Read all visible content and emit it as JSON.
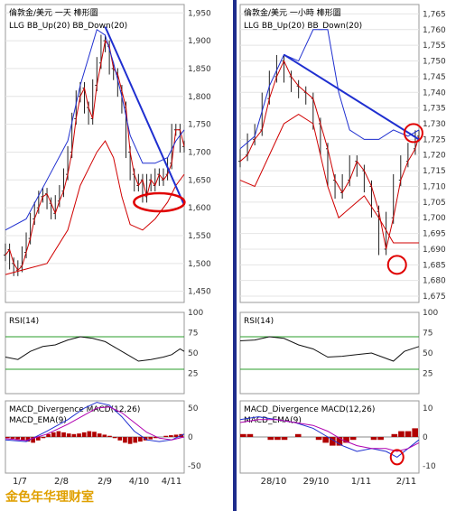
{
  "caption": "金色年华理财室",
  "chart_data": [
    {
      "type": "candlestick",
      "title": "倫敦金/美元 一天 棒形圖",
      "indicator_label": "LLG BB_Up(20) BB_Down(20)",
      "y_ticks": [
        1450,
        1500,
        1550,
        1600,
        1650,
        1700,
        1750,
        1800,
        1850,
        1900,
        1950
      ],
      "ylim": [
        1430,
        1965
      ],
      "x_ticks": [
        "1/7",
        "2/8",
        "2/9",
        "4/10",
        "4/11"
      ],
      "price": [
        [
          0,
          1515
        ],
        [
          2,
          1525
        ],
        [
          4,
          1500
        ],
        [
          6,
          1488
        ],
        [
          8,
          1495
        ],
        [
          10,
          1520
        ],
        [
          12,
          1545
        ],
        [
          14,
          1580
        ],
        [
          16,
          1600
        ],
        [
          18,
          1620
        ],
        [
          20,
          1625
        ],
        [
          22,
          1608
        ],
        [
          24,
          1590
        ],
        [
          26,
          1612
        ],
        [
          28,
          1630
        ],
        [
          30,
          1660
        ],
        [
          32,
          1700
        ],
        [
          34,
          1760
        ],
        [
          36,
          1800
        ],
        [
          38,
          1815
        ],
        [
          40,
          1780
        ],
        [
          42,
          1760
        ],
        [
          44,
          1820
        ],
        [
          46,
          1860
        ],
        [
          48,
          1900
        ],
        [
          50,
          1890
        ],
        [
          52,
          1850
        ],
        [
          54,
          1840
        ],
        [
          56,
          1810
        ],
        [
          58,
          1780
        ],
        [
          60,
          1700
        ],
        [
          62,
          1660
        ],
        [
          64,
          1640
        ],
        [
          66,
          1650
        ],
        [
          68,
          1620
        ],
        [
          70,
          1650
        ],
        [
          72,
          1640
        ],
        [
          74,
          1660
        ],
        [
          76,
          1650
        ],
        [
          78,
          1660
        ],
        [
          80,
          1680
        ],
        [
          82,
          1740
        ],
        [
          84,
          1740
        ],
        [
          86,
          1710
        ]
      ],
      "bb_up": [
        [
          0,
          1560
        ],
        [
          10,
          1580
        ],
        [
          20,
          1650
        ],
        [
          30,
          1720
        ],
        [
          36,
          1820
        ],
        [
          44,
          1920
        ],
        [
          48,
          1910
        ],
        [
          52,
          1860
        ],
        [
          56,
          1800
        ],
        [
          60,
          1730
        ],
        [
          66,
          1680
        ],
        [
          72,
          1680
        ],
        [
          78,
          1690
        ],
        [
          82,
          1720
        ],
        [
          86,
          1740
        ]
      ],
      "bb_down": [
        [
          0,
          1480
        ],
        [
          10,
          1490
        ],
        [
          20,
          1500
        ],
        [
          30,
          1560
        ],
        [
          36,
          1640
        ],
        [
          44,
          1700
        ],
        [
          48,
          1720
        ],
        [
          52,
          1690
        ],
        [
          56,
          1620
        ],
        [
          60,
          1570
        ],
        [
          66,
          1560
        ],
        [
          72,
          1580
        ],
        [
          78,
          1610
        ],
        [
          82,
          1640
        ],
        [
          86,
          1660
        ]
      ],
      "trendline": [
        [
          48,
          1925
        ],
        [
          86,
          1605
        ]
      ],
      "ellipse_center": [
        74,
        1610
      ],
      "rsi": {
        "label": "RSI(14)",
        "ticks": [
          25,
          50,
          75,
          100
        ],
        "bands": [
          30,
          70
        ],
        "values": [
          [
            0,
            45
          ],
          [
            6,
            42
          ],
          [
            12,
            52
          ],
          [
            18,
            58
          ],
          [
            24,
            60
          ],
          [
            30,
            66
          ],
          [
            36,
            70
          ],
          [
            42,
            68
          ],
          [
            48,
            64
          ],
          [
            52,
            58
          ],
          [
            56,
            52
          ],
          [
            60,
            46
          ],
          [
            64,
            40
          ],
          [
            70,
            42
          ],
          [
            76,
            45
          ],
          [
            80,
            48
          ],
          [
            84,
            55
          ],
          [
            86,
            52
          ]
        ]
      },
      "macd": {
        "label": "MACD_Divergence  MACD(12,26)",
        "label2": "MACD_EMA(9)",
        "ticks": [
          50,
          0,
          -50
        ],
        "macd": [
          [
            0,
            -5
          ],
          [
            10,
            -8
          ],
          [
            20,
            10
          ],
          [
            30,
            30
          ],
          [
            38,
            50
          ],
          [
            44,
            60
          ],
          [
            50,
            55
          ],
          [
            56,
            35
          ],
          [
            62,
            10
          ],
          [
            68,
            -5
          ],
          [
            74,
            -8
          ],
          [
            80,
            -5
          ],
          [
            86,
            5
          ]
        ],
        "ema": [
          [
            0,
            -3
          ],
          [
            10,
            -6
          ],
          [
            20,
            5
          ],
          [
            30,
            22
          ],
          [
            38,
            38
          ],
          [
            44,
            50
          ],
          [
            50,
            52
          ],
          [
            56,
            42
          ],
          [
            62,
            25
          ],
          [
            68,
            8
          ],
          [
            74,
            -2
          ],
          [
            80,
            -5
          ],
          [
            86,
            0
          ]
        ],
        "hist": [
          -2,
          -3,
          -4,
          -6,
          -8,
          -10,
          -6,
          -2,
          5,
          8,
          10,
          8,
          6,
          5,
          6,
          8,
          10,
          9,
          6,
          4,
          2,
          -2,
          -6,
          -10,
          -12,
          -10,
          -8,
          -6,
          -4,
          -2,
          0,
          2,
          3,
          4,
          5
        ]
      }
    },
    {
      "type": "candlestick",
      "title": "倫敦金/美元 一小時 棒形圖",
      "indicator_label": "LLG BB_Up(20) BB_Down(20)",
      "y_ticks": [
        1675,
        1680,
        1685,
        1690,
        1695,
        1700,
        1705,
        1710,
        1715,
        1720,
        1725,
        1730,
        1735,
        1740,
        1745,
        1750,
        1755,
        1760,
        1765
      ],
      "ylim": [
        1673,
        1768
      ],
      "x_ticks": [
        "28/10",
        "29/10",
        "1/11",
        "2/11"
      ],
      "price": [
        [
          0,
          1718
        ],
        [
          4,
          1720
        ],
        [
          8,
          1725
        ],
        [
          12,
          1728
        ],
        [
          16,
          1738
        ],
        [
          20,
          1745
        ],
        [
          24,
          1750
        ],
        [
          28,
          1745
        ],
        [
          32,
          1742
        ],
        [
          36,
          1740
        ],
        [
          40,
          1738
        ],
        [
          44,
          1730
        ],
        [
          48,
          1722
        ],
        [
          52,
          1712
        ],
        [
          56,
          1708
        ],
        [
          60,
          1712
        ],
        [
          64,
          1718
        ],
        [
          68,
          1715
        ],
        [
          72,
          1710
        ],
        [
          76,
          1702
        ],
        [
          80,
          1690
        ],
        [
          84,
          1700
        ],
        [
          88,
          1712
        ],
        [
          92,
          1718
        ],
        [
          96,
          1722
        ],
        [
          98,
          1726
        ]
      ],
      "bb_up": [
        [
          0,
          1722
        ],
        [
          8,
          1726
        ],
        [
          16,
          1742
        ],
        [
          24,
          1752
        ],
        [
          32,
          1750
        ],
        [
          40,
          1760
        ],
        [
          48,
          1760
        ],
        [
          54,
          1740
        ],
        [
          60,
          1728
        ],
        [
          68,
          1725
        ],
        [
          76,
          1725
        ],
        [
          84,
          1728
        ],
        [
          92,
          1726
        ],
        [
          98,
          1728
        ]
      ],
      "bb_down": [
        [
          0,
          1712
        ],
        [
          8,
          1710
        ],
        [
          16,
          1720
        ],
        [
          24,
          1730
        ],
        [
          32,
          1733
        ],
        [
          40,
          1730
        ],
        [
          48,
          1710
        ],
        [
          54,
          1700
        ],
        [
          60,
          1703
        ],
        [
          68,
          1707
        ],
        [
          76,
          1700
        ],
        [
          84,
          1692
        ],
        [
          92,
          1692
        ],
        [
          98,
          1692
        ]
      ],
      "trendline": [
        [
          24,
          1752
        ],
        [
          98,
          1725
        ]
      ],
      "circles": [
        [
          86,
          1685
        ],
        [
          95,
          1727
        ]
      ],
      "rsi": {
        "label": "RSI(14)",
        "ticks": [
          25,
          50,
          75,
          100
        ],
        "bands": [
          30,
          70
        ],
        "values": [
          [
            0,
            65
          ],
          [
            8,
            66
          ],
          [
            16,
            70
          ],
          [
            24,
            68
          ],
          [
            32,
            60
          ],
          [
            40,
            55
          ],
          [
            48,
            45
          ],
          [
            56,
            46
          ],
          [
            64,
            48
          ],
          [
            72,
            50
          ],
          [
            78,
            45
          ],
          [
            84,
            40
          ],
          [
            90,
            52
          ],
          [
            98,
            58
          ]
        ]
      },
      "macd": {
        "label": "MACD_Divergence  MACD(12,26)",
        "label2": "MACD_EMA(9)",
        "ticks": [
          10,
          0,
          -10
        ],
        "macd": [
          [
            0,
            6
          ],
          [
            10,
            7
          ],
          [
            20,
            6
          ],
          [
            30,
            5
          ],
          [
            40,
            3
          ],
          [
            48,
            0
          ],
          [
            56,
            -3
          ],
          [
            64,
            -5
          ],
          [
            72,
            -4
          ],
          [
            80,
            -5
          ],
          [
            86,
            -7
          ],
          [
            92,
            -4
          ],
          [
            98,
            -1
          ]
        ],
        "ema": [
          [
            0,
            5
          ],
          [
            10,
            6
          ],
          [
            20,
            6
          ],
          [
            30,
            5
          ],
          [
            40,
            4
          ],
          [
            48,
            2
          ],
          [
            56,
            -1
          ],
          [
            64,
            -3
          ],
          [
            72,
            -4
          ],
          [
            80,
            -4
          ],
          [
            86,
            -5
          ],
          [
            92,
            -4
          ],
          [
            98,
            -2
          ]
        ],
        "hist": [
          1,
          1,
          0,
          0,
          -1,
          -1,
          -1,
          0,
          1,
          0,
          0,
          -1,
          -2,
          -3,
          -3,
          -2,
          -1,
          0,
          0,
          -1,
          -1,
          0,
          1,
          2,
          2,
          3
        ]
      }
    }
  ]
}
